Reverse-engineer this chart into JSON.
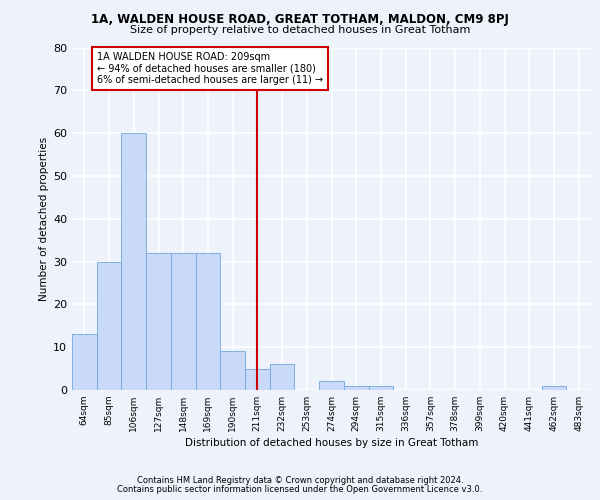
{
  "title1": "1A, WALDEN HOUSE ROAD, GREAT TOTHAM, MALDON, CM9 8PJ",
  "title2": "Size of property relative to detached houses in Great Totham",
  "xlabel": "Distribution of detached houses by size in Great Totham",
  "ylabel": "Number of detached properties",
  "categories": [
    "64sqm",
    "85sqm",
    "106sqm",
    "127sqm",
    "148sqm",
    "169sqm",
    "190sqm",
    "211sqm",
    "232sqm",
    "253sqm",
    "274sqm",
    "294sqm",
    "315sqm",
    "336sqm",
    "357sqm",
    "378sqm",
    "399sqm",
    "420sqm",
    "441sqm",
    "462sqm",
    "483sqm"
  ],
  "values": [
    13,
    30,
    60,
    32,
    32,
    32,
    9,
    5,
    6,
    0,
    2,
    1,
    1,
    0,
    0,
    0,
    0,
    0,
    0,
    1,
    0
  ],
  "bar_color": "#c9daf8",
  "bar_edge_color": "#6fa8dc",
  "vline_x_index": 7,
  "vline_color": "#cc0000",
  "ylim": [
    0,
    80
  ],
  "yticks": [
    0,
    10,
    20,
    30,
    40,
    50,
    60,
    70,
    80
  ],
  "annotation_text": "1A WALDEN HOUSE ROAD: 209sqm\n← 94% of detached houses are smaller (180)\n6% of semi-detached houses are larger (11) →",
  "annotation_box_color": "#ffffff",
  "annotation_box_edge_color": "#cc0000",
  "footer1": "Contains HM Land Registry data © Crown copyright and database right 2024.",
  "footer2": "Contains public sector information licensed under the Open Government Licence v3.0.",
  "bg_color": "#eef2fb",
  "plot_bg_color": "#eef2fb",
  "grid_color": "#ffffff"
}
